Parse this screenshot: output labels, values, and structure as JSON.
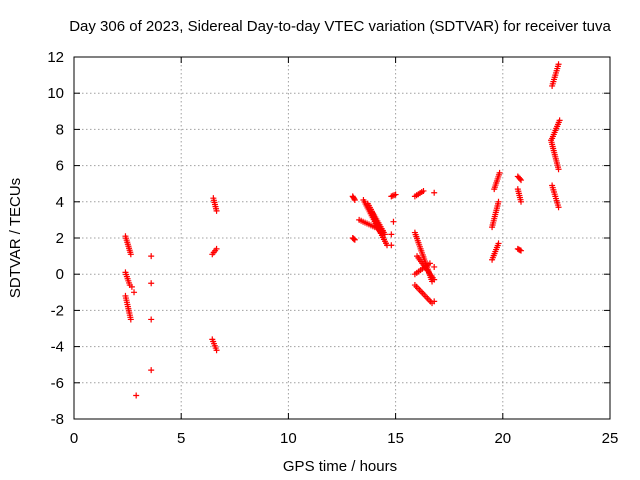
{
  "chart_data": {
    "type": "scatter",
    "title": "Day 306 of 2023, Sidereal Day-to-day VTEC variation (SDTVAR) for receiver tuva",
    "xlabel": "GPS time / hours",
    "ylabel": "SDTVAR / TECUs",
    "xlim": [
      0,
      25
    ],
    "ylim": [
      -8,
      12
    ],
    "xticks": [
      0,
      5,
      10,
      15,
      20,
      25
    ],
    "yticks": [
      -8,
      -6,
      -4,
      -2,
      0,
      2,
      4,
      6,
      8,
      10,
      12
    ],
    "grid": true,
    "marker": "+",
    "color": "#ff0000",
    "series": [
      {
        "name": "SDTVAR",
        "segments": [
          {
            "x": [
              2.4,
              2.65
            ],
            "y": [
              2.1,
              1.1
            ]
          },
          {
            "x": [
              2.4,
              2.6
            ],
            "y": [
              0.1,
              -0.6
            ]
          },
          {
            "x": [
              2.4,
              2.65
            ],
            "y": [
              -1.2,
              -2.5
            ]
          },
          {
            "x": [
              6.5,
              6.65
            ],
            "y": [
              4.2,
              3.5
            ]
          },
          {
            "x": [
              6.45,
              6.65
            ],
            "y": [
              1.1,
              1.4
            ]
          },
          {
            "x": [
              6.45,
              6.65
            ],
            "y": [
              -3.6,
              -4.2
            ]
          },
          {
            "x": [
              13.0,
              13.1
            ],
            "y": [
              4.3,
              4.1
            ]
          },
          {
            "x": [
              13.0,
              13.1
            ],
            "y": [
              2.0,
              1.9
            ]
          },
          {
            "x": [
              13.5,
              14.6
            ],
            "y": [
              4.1,
              1.6
            ]
          },
          {
            "x": [
              13.7,
              14.5
            ],
            "y": [
              3.9,
              2.2
            ]
          },
          {
            "x": [
              13.3,
              14.4
            ],
            "y": [
              3.0,
              2.4
            ]
          },
          {
            "x": [
              13.9,
              14.3
            ],
            "y": [
              3.4,
              2.3
            ]
          },
          {
            "x": [
              14.8,
              15.0
            ],
            "y": [
              4.3,
              4.4
            ]
          },
          {
            "x": [
              15.9,
              16.3
            ],
            "y": [
              4.3,
              4.6
            ]
          },
          {
            "x": [
              15.9,
              16.7
            ],
            "y": [
              2.3,
              -0.4
            ]
          },
          {
            "x": [
              15.9,
              16.6
            ],
            "y": [
              0.0,
              0.6
            ]
          },
          {
            "x": [
              16.0,
              16.8
            ],
            "y": [
              1.0,
              -0.3
            ]
          },
          {
            "x": [
              15.9,
              16.7
            ],
            "y": [
              -0.6,
              -1.6
            ]
          },
          {
            "x": [
              19.5,
              19.8
            ],
            "y": [
              0.8,
              1.7
            ]
          },
          {
            "x": [
              19.5,
              19.8
            ],
            "y": [
              2.6,
              4.0
            ]
          },
          {
            "x": [
              19.6,
              19.85
            ],
            "y": [
              4.7,
              5.6
            ]
          },
          {
            "x": [
              20.7,
              20.85
            ],
            "y": [
              5.4,
              5.2
            ]
          },
          {
            "x": [
              20.7,
              20.85
            ],
            "y": [
              4.7,
              4.0
            ]
          },
          {
            "x": [
              20.7,
              20.85
            ],
            "y": [
              1.4,
              1.3
            ]
          },
          {
            "x": [
              22.3,
              22.6
            ],
            "y": [
              10.4,
              11.6
            ]
          },
          {
            "x": [
              22.3,
              22.65
            ],
            "y": [
              7.5,
              8.5
            ]
          },
          {
            "x": [
              22.25,
              22.6
            ],
            "y": [
              7.4,
              5.8
            ]
          },
          {
            "x": [
              22.3,
              22.6
            ],
            "y": [
              4.9,
              3.7
            ]
          }
        ],
        "points": [
          [
            2.7,
            -0.7
          ],
          [
            2.8,
            -1.0
          ],
          [
            2.9,
            -6.7
          ],
          [
            3.6,
            1.0
          ],
          [
            3.6,
            -0.5
          ],
          [
            3.6,
            -2.5
          ],
          [
            3.6,
            -5.3
          ],
          [
            14.8,
            2.2
          ],
          [
            14.8,
            1.6
          ],
          [
            14.9,
            2.9
          ],
          [
            16.8,
            0.4
          ],
          [
            16.8,
            4.5
          ],
          [
            16.8,
            -1.5
          ]
        ]
      }
    ]
  }
}
